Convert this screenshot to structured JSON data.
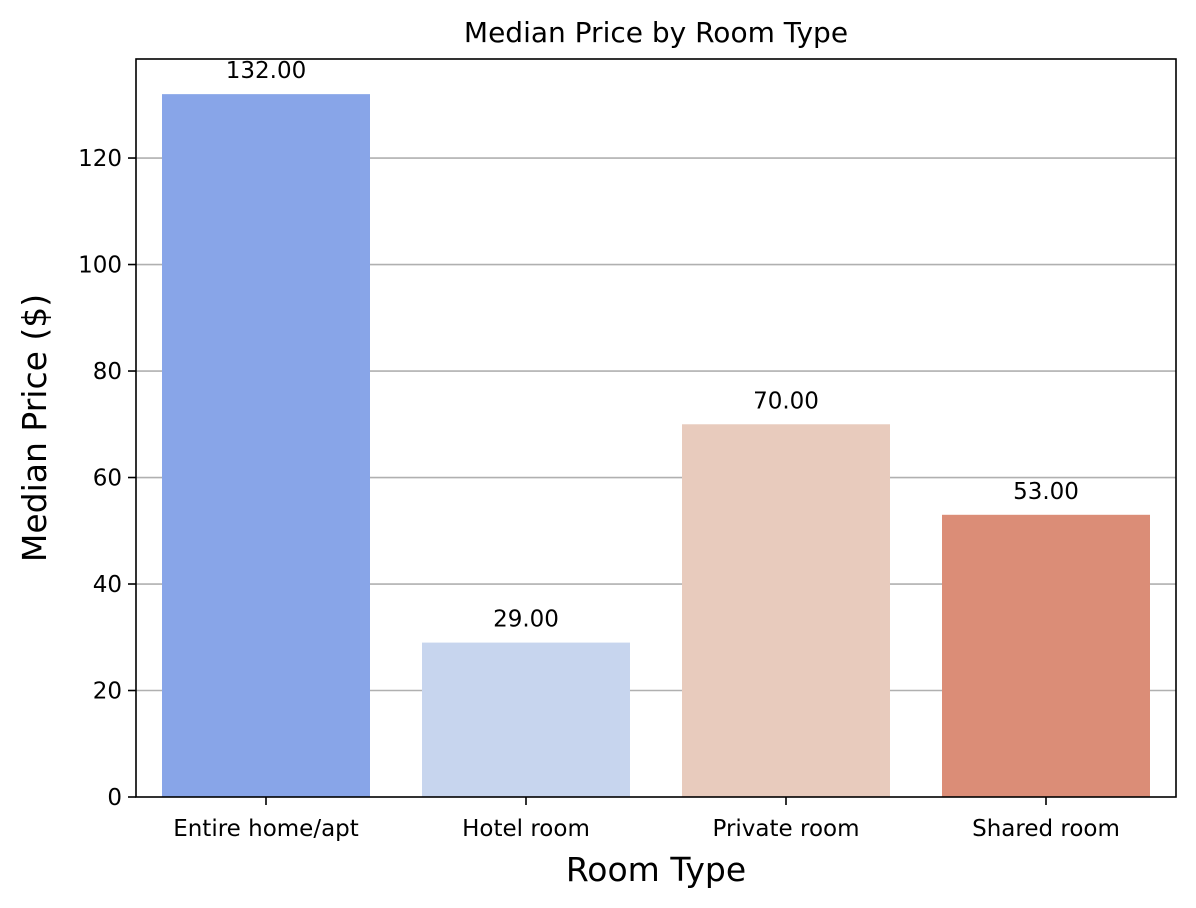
{
  "chart_data": {
    "type": "bar",
    "title": "Median Price by Room Type",
    "xlabel": "Room Type",
    "ylabel": "Median Price ($)",
    "categories": [
      "Entire home/apt",
      "Hotel room",
      "Private room",
      "Shared room"
    ],
    "values": [
      132.0,
      29.0,
      70.0,
      53.0
    ],
    "data_labels": [
      "132.00",
      "29.00",
      "70.00",
      "53.00"
    ],
    "colors": [
      "#88a5e8",
      "#c7d5ee",
      "#e8cbbd",
      "#db8d77"
    ],
    "ylim": [
      0,
      138.6
    ],
    "yticks": [
      0,
      20,
      40,
      60,
      80,
      100,
      120
    ],
    "grid": "y-axis on",
    "legend": "none"
  }
}
